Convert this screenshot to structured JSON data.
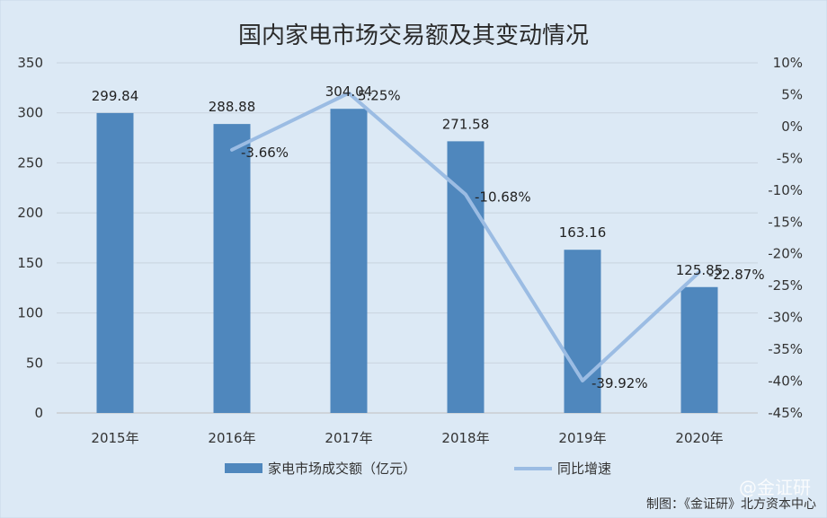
{
  "chart_data": {
    "type": "bar+line",
    "title": "国内家电市场交易额及其变动情况",
    "categories": [
      "2015年",
      "2016年",
      "2017年",
      "2018年",
      "2019年",
      "2020年"
    ],
    "series": [
      {
        "name": "家电市场成交额（亿元）",
        "type": "bar",
        "axis": "left",
        "values": [
          299.84,
          288.88,
          304.04,
          271.58,
          163.16,
          125.85
        ],
        "labels": [
          "299.84",
          "288.88",
          "304.04",
          "271.58",
          "163.16",
          "125.85"
        ],
        "color": "#4f87bd"
      },
      {
        "name": "同比增速",
        "type": "line",
        "axis": "right",
        "values": [
          null,
          -3.66,
          5.25,
          -10.68,
          -39.92,
          -22.87
        ],
        "labels": [
          "",
          "-3.66%",
          "5.25%",
          "-10.68%",
          "-39.92%",
          "-22.87%"
        ],
        "color": "#9bbce3"
      }
    ],
    "y_left": {
      "min": 0,
      "max": 350,
      "step": 50,
      "ticks": [
        "0",
        "50",
        "100",
        "150",
        "200",
        "250",
        "300",
        "350"
      ]
    },
    "y_right": {
      "min": -45,
      "max": 10,
      "step": 5,
      "ticks": [
        "-45%",
        "-40%",
        "-35%",
        "-30%",
        "-25%",
        "-20%",
        "-15%",
        "-10%",
        "-5%",
        "0%",
        "5%",
        "10%"
      ]
    },
    "grid": true,
    "legend_position": "bottom"
  },
  "footer": "制图：《金证研》北方资本中心",
  "watermark": "@金证研"
}
